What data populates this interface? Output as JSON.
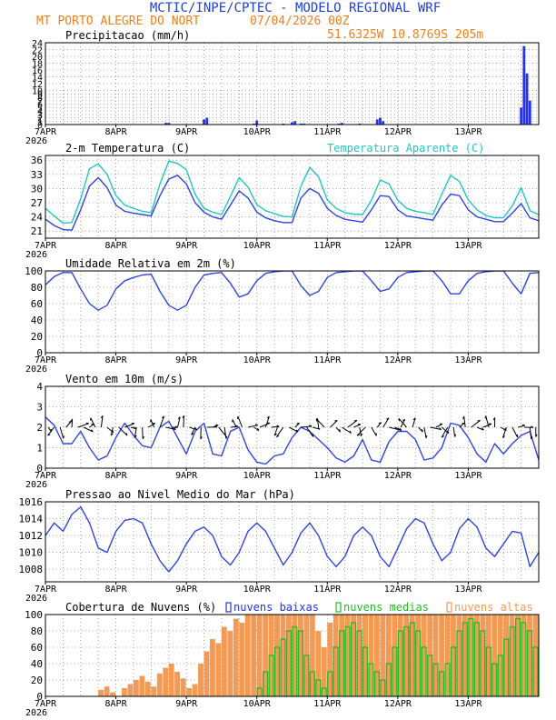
{
  "header": {
    "title": "MCTIC/INPE/CPTEC - MODELO REGIONAL WRF",
    "location": "MT PORTO ALEGRE DO NORT",
    "run": "07/04/2026 00Z",
    "coords": "51.6325W 10.8769S 205m"
  },
  "colors": {
    "title": "#1f3fd6",
    "orange": "#f07f1a",
    "line_blue": "#2f45e0",
    "cyan": "#22c6c0",
    "bar_blue": "#2433e8",
    "cloud_low_edge": "#2433e8",
    "cloud_mid": "#22bb22",
    "cloud_high": "#f39a55",
    "arrow": "#000000"
  },
  "chart_data": [
    {
      "type": "bar",
      "title": "Precipitacao (mm/h)",
      "x_ticks": [
        "7APR",
        "8APR",
        "9APR",
        "10APR",
        "11APR",
        "12APR",
        "13APR"
      ],
      "x_year": "2026",
      "x_range_hours": [
        0,
        168
      ],
      "ylim": [
        0,
        24
      ],
      "y_ticks": [
        0,
        1,
        2,
        3,
        4,
        5,
        6,
        7,
        8,
        9,
        10,
        12,
        14,
        16,
        18,
        20,
        22,
        24
      ],
      "y_labels": [
        "0",
        "1",
        "2",
        "3",
        "4",
        "5",
        "6",
        "7",
        "8",
        "9",
        "10",
        "12",
        "14",
        "16",
        "18",
        "20",
        "22",
        "24"
      ],
      "series": [
        {
          "name": "Precipitacao",
          "hours": [
            41,
            42,
            54,
            55,
            71,
            72,
            81,
            84,
            85,
            87,
            88,
            100,
            101,
            107,
            113,
            114,
            115,
            162,
            163,
            164,
            165
          ],
          "values": [
            0.5,
            0.5,
            1.5,
            2.0,
            0.3,
            1.2,
            0.3,
            0.7,
            1.0,
            0.3,
            0.3,
            0.3,
            0.5,
            0.3,
            1.5,
            2.0,
            1.0,
            5.0,
            23.0,
            15.0,
            7.0
          ]
        }
      ]
    },
    {
      "type": "line",
      "title": "2-m Temperatura (C)",
      "legend": "Temperatura Aparente (C)",
      "x_ticks": [
        "7APR",
        "8APR",
        "9APR",
        "10APR",
        "11APR",
        "12APR",
        "13APR"
      ],
      "x_year": "2026",
      "x_range_hours": [
        0,
        168
      ],
      "ylim": [
        19.5,
        37
      ],
      "y_ticks": [
        21,
        24,
        27,
        30,
        33,
        36
      ],
      "series": [
        {
          "name": "Temperatura 2m",
          "hours": [
            0,
            3,
            6,
            9,
            12,
            15,
            18,
            21,
            24,
            27,
            30,
            33,
            36,
            39,
            42,
            45,
            48,
            51,
            54,
            57,
            60,
            63,
            66,
            69,
            72,
            75,
            78,
            81,
            84,
            87,
            90,
            93,
            96,
            99,
            102,
            105,
            108,
            111,
            114,
            117,
            120,
            123,
            126,
            129,
            132,
            135,
            138,
            141,
            144,
            147,
            150,
            153,
            156,
            159,
            162,
            165,
            168
          ],
          "values": [
            23.5,
            22.2,
            21.3,
            21.2,
            25.5,
            30.5,
            32.3,
            30.2,
            26.5,
            25.2,
            24.8,
            24.5,
            24.2,
            28.5,
            32.0,
            32.8,
            31.0,
            27.0,
            25.0,
            24.0,
            23.5,
            26.5,
            29.5,
            28.0,
            25.0,
            23.8,
            23.2,
            22.8,
            22.8,
            28.0,
            30.0,
            29.0,
            25.8,
            24.3,
            23.5,
            23.2,
            22.9,
            25.5,
            28.5,
            28.3,
            25.5,
            24.2,
            23.9,
            23.6,
            23.3,
            26.5,
            28.8,
            28.5,
            25.5,
            24.0,
            23.5,
            23.0,
            23.0,
            24.8,
            26.8,
            23.8,
            23.2
          ]
        },
        {
          "name": "Temperatura Aparente",
          "hours": [
            0,
            3,
            6,
            9,
            12,
            15,
            18,
            21,
            24,
            27,
            30,
            33,
            36,
            39,
            42,
            45,
            48,
            51,
            54,
            57,
            60,
            63,
            66,
            69,
            72,
            75,
            78,
            81,
            84,
            87,
            90,
            93,
            96,
            99,
            102,
            105,
            108,
            111,
            114,
            117,
            120,
            123,
            126,
            129,
            132,
            135,
            138,
            141,
            144,
            147,
            150,
            153,
            156,
            159,
            162,
            165,
            168
          ],
          "values": [
            25.8,
            24.2,
            22.7,
            22.8,
            27.8,
            34.2,
            35.2,
            33.0,
            28.5,
            26.5,
            25.8,
            25.2,
            24.9,
            31.0,
            35.8,
            35.3,
            34.0,
            28.8,
            25.8,
            25.0,
            24.5,
            28.3,
            32.3,
            30.3,
            26.6,
            25.3,
            24.7,
            24.1,
            24.0,
            30.5,
            34.5,
            32.5,
            27.6,
            25.8,
            24.9,
            24.6,
            24.5,
            27.5,
            31.8,
            31.0,
            27.5,
            25.8,
            25.2,
            24.9,
            24.5,
            28.8,
            32.8,
            31.5,
            27.6,
            25.5,
            24.3,
            23.8,
            23.8,
            26.3,
            30.2,
            25.3,
            24.5
          ]
        }
      ]
    },
    {
      "type": "line",
      "title": "Umidade Relativa em 2m (%)",
      "x_ticks": [
        "7APR",
        "8APR",
        "9APR",
        "10APR",
        "11APR",
        "12APR",
        "13APR"
      ],
      "x_year": "2026",
      "x_range_hours": [
        0,
        168
      ],
      "ylim": [
        0,
        100
      ],
      "y_ticks": [
        0,
        20,
        40,
        60,
        80,
        100
      ],
      "series": [
        {
          "name": "Umidade Relativa",
          "hours": [
            0,
            3,
            6,
            9,
            12,
            15,
            18,
            21,
            24,
            27,
            30,
            33,
            36,
            39,
            42,
            45,
            48,
            51,
            54,
            57,
            60,
            63,
            66,
            69,
            72,
            75,
            78,
            81,
            84,
            87,
            90,
            93,
            96,
            99,
            102,
            105,
            108,
            111,
            114,
            117,
            120,
            123,
            126,
            129,
            132,
            135,
            138,
            141,
            144,
            147,
            150,
            153,
            156,
            159,
            162,
            165,
            168
          ],
          "values": [
            83,
            93,
            98,
            98,
            78,
            60,
            52,
            58,
            78,
            88,
            92,
            95,
            96,
            75,
            58,
            52,
            58,
            80,
            95,
            97,
            98,
            85,
            68,
            72,
            88,
            97,
            99,
            100,
            100,
            82,
            70,
            75,
            92,
            98,
            99,
            100,
            100,
            88,
            75,
            78,
            92,
            98,
            99,
            100,
            100,
            88,
            72,
            72,
            88,
            97,
            99,
            100,
            100,
            85,
            72,
            97,
            98
          ]
        }
      ]
    },
    {
      "type": "line",
      "title": "Vento em 10m (m/s)",
      "x_ticks": [
        "7APR",
        "8APR",
        "9APR",
        "10APR",
        "11APR",
        "12APR",
        "13APR"
      ],
      "x_year": "2026",
      "x_range_hours": [
        0,
        168
      ],
      "ylim": [
        0,
        4
      ],
      "y_ticks": [
        0,
        1,
        2,
        3,
        4
      ],
      "series": [
        {
          "name": "Velocidade do vento",
          "hours": [
            0,
            3,
            6,
            9,
            12,
            15,
            18,
            21,
            24,
            27,
            30,
            33,
            36,
            39,
            42,
            45,
            48,
            51,
            54,
            57,
            60,
            63,
            66,
            69,
            72,
            75,
            78,
            81,
            84,
            87,
            90,
            93,
            96,
            99,
            102,
            105,
            108,
            111,
            114,
            117,
            120,
            123,
            126,
            129,
            132,
            135,
            138,
            141,
            144,
            147,
            150,
            153,
            156,
            159,
            162,
            165,
            168
          ],
          "values": [
            2.5,
            2.1,
            1.2,
            1.2,
            1.8,
            1.0,
            0.4,
            0.6,
            1.5,
            2.2,
            1.6,
            1.1,
            1.0,
            2.0,
            2.3,
            1.5,
            0.7,
            1.8,
            2.2,
            0.7,
            0.6,
            1.8,
            2.0,
            0.9,
            0.3,
            0.2,
            0.6,
            0.7,
            1.5,
            2.0,
            1.8,
            1.4,
            1.0,
            0.5,
            0.3,
            0.6,
            1.4,
            0.4,
            0.3,
            1.3,
            1.8,
            1.8,
            1.4,
            0.4,
            0.5,
            1.0,
            2.2,
            2.1,
            1.5,
            0.7,
            0.3,
            1.2,
            0.7,
            1.2,
            1.6,
            1.8,
            0.4
          ]
        }
      ]
    },
    {
      "type": "line",
      "title": "Pressao ao Nivel Medio do Mar (hPa)",
      "x_ticks": [
        "7APR",
        "8APR",
        "9APR",
        "10APR",
        "11APR",
        "12APR",
        "13APR"
      ],
      "x_year": "2026",
      "x_range_hours": [
        0,
        168
      ],
      "ylim": [
        1006.5,
        1016
      ],
      "y_ticks": [
        1008,
        1010,
        1012,
        1014,
        1016
      ],
      "series": [
        {
          "name": "Pressao",
          "hours": [
            0,
            3,
            6,
            9,
            12,
            15,
            18,
            21,
            24,
            27,
            30,
            33,
            36,
            39,
            42,
            45,
            48,
            51,
            54,
            57,
            60,
            63,
            66,
            69,
            72,
            75,
            78,
            81,
            84,
            87,
            90,
            93,
            96,
            99,
            102,
            105,
            108,
            111,
            114,
            117,
            120,
            123,
            126,
            129,
            132,
            135,
            138,
            141,
            144,
            147,
            150,
            153,
            156,
            159,
            162,
            165,
            168
          ],
          "values": [
            1012.0,
            1013.5,
            1012.5,
            1014.5,
            1015.4,
            1013.5,
            1010.5,
            1010.0,
            1012.5,
            1013.8,
            1014.0,
            1013.5,
            1011.0,
            1009.0,
            1007.7,
            1009.0,
            1011.0,
            1012.5,
            1013.0,
            1012.0,
            1009.5,
            1008.5,
            1010.0,
            1012.5,
            1013.5,
            1012.5,
            1010.5,
            1008.5,
            1010.0,
            1012.3,
            1013.5,
            1012.0,
            1009.5,
            1008.3,
            1009.5,
            1012.0,
            1013.0,
            1012.0,
            1009.5,
            1008.3,
            1010.5,
            1012.8,
            1014.0,
            1013.5,
            1011.0,
            1009.0,
            1010.0,
            1012.8,
            1014.0,
            1013.0,
            1010.5,
            1009.5,
            1011.0,
            1012.5,
            1012.3,
            1008.3,
            1010.0
          ]
        }
      ]
    },
    {
      "type": "bar",
      "title": "Cobertura de Nuvens (%)",
      "legend": [
        "nuvens baixas",
        "nuvens medias",
        "nuvens altas"
      ],
      "x_ticks": [
        "7APR",
        "8APR",
        "9APR",
        "10APR",
        "11APR",
        "12APR",
        "13APR"
      ],
      "x_year": "2026",
      "x_range_hours": [
        0,
        168
      ],
      "ylim": [
        0,
        100
      ],
      "y_ticks": [
        0,
        20,
        40,
        60,
        80,
        100
      ],
      "series": [
        {
          "name": "nuvens altas",
          "values": [
            0,
            0,
            0,
            0,
            0,
            0,
            0,
            0,
            0,
            8,
            12,
            5,
            0,
            10,
            15,
            20,
            25,
            18,
            12,
            28,
            35,
            40,
            30,
            22,
            10,
            15,
            40,
            55,
            70,
            65,
            85,
            80,
            95,
            90,
            100,
            100,
            100,
            100,
            100,
            100,
            100,
            100,
            100,
            100,
            100,
            100,
            80,
            60,
            90,
            100,
            100,
            100,
            100,
            100,
            100,
            100,
            100,
            100,
            100,
            100,
            100,
            100,
            100,
            100,
            100,
            100,
            100,
            100,
            100,
            100,
            100,
            100,
            100,
            100,
            100,
            100,
            100,
            100,
            100,
            100,
            100,
            100,
            100,
            100
          ]
        },
        {
          "name": "nuvens medias",
          "values": [
            0,
            0,
            0,
            0,
            0,
            0,
            0,
            0,
            0,
            0,
            0,
            0,
            0,
            0,
            0,
            0,
            0,
            0,
            0,
            0,
            0,
            0,
            0,
            0,
            0,
            0,
            0,
            0,
            0,
            0,
            0,
            0,
            0,
            0,
            0,
            0,
            10,
            30,
            50,
            60,
            70,
            80,
            85,
            80,
            50,
            30,
            20,
            10,
            30,
            60,
            80,
            85,
            90,
            80,
            60,
            40,
            30,
            20,
            40,
            60,
            80,
            85,
            90,
            80,
            60,
            50,
            40,
            30,
            40,
            60,
            80,
            90,
            95,
            90,
            80,
            60,
            40,
            50,
            70,
            85,
            95,
            90,
            80,
            60
          ]
        },
        {
          "name": "nuvens baixas",
          "values": [
            0,
            0,
            0,
            0,
            0,
            0,
            0,
            0,
            0,
            0,
            0,
            0,
            0,
            0,
            0,
            0,
            0,
            0,
            0,
            0,
            0,
            0,
            0,
            0,
            0,
            0,
            0,
            0,
            0,
            0,
            0,
            0,
            0,
            0,
            0,
            0,
            0,
            0,
            0,
            0,
            0,
            0,
            0,
            0,
            0,
            0,
            0,
            0,
            0,
            0,
            0,
            0,
            0,
            0,
            0,
            0,
            0,
            0,
            0,
            0,
            0,
            0,
            0,
            0,
            0,
            0,
            0,
            0,
            0,
            0,
            0,
            0,
            0,
            0,
            0,
            0,
            0,
            0,
            0,
            0,
            0,
            0,
            0,
            0
          ]
        }
      ],
      "bar_hours_step": 2
    }
  ]
}
